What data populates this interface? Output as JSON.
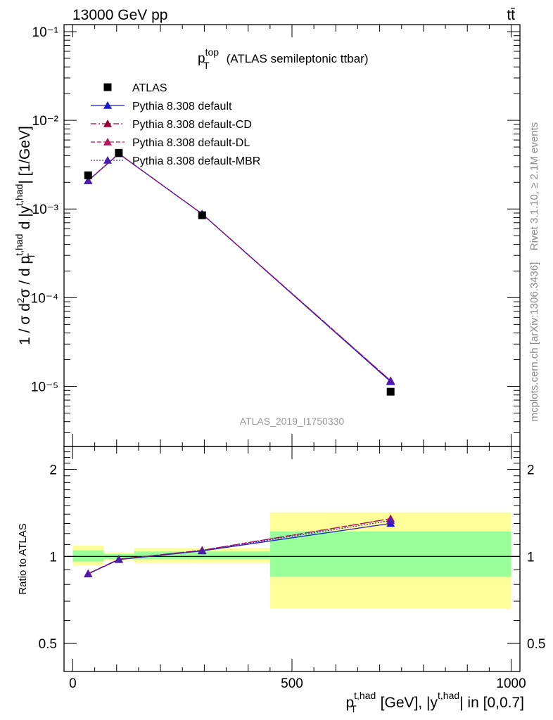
{
  "header": {
    "energy_label": "13000 GeV pp",
    "process_label": "tt̄",
    "side_rivet": "Rivet 3.1.10, ≥ 2.1M events",
    "side_mcplots": "mcplots.cern.ch [arXiv:1306.3436]"
  },
  "plot_title": {
    "main": "p",
    "sup": "top",
    "sub": "T",
    "rest": "(ATLAS semileptonic ttbar)"
  },
  "analysis_id": "ATLAS_2019_I1750330",
  "colors": {
    "data": "#000000",
    "default": "#1a1acc",
    "cd": "#990033",
    "dl": "#b3165f",
    "mbr": "#4d1ab3",
    "band_inner": "#99ff99",
    "band_outer": "#ffff99"
  },
  "chart_data": [
    {
      "type": "scatter",
      "panel": "main",
      "ylabel": "1 / σ d²σ / d p_T^{t,had} d |y^{t,had}| [1/GeV]",
      "yscale": "log",
      "ylim": [
        2.1e-06,
        0.12
      ],
      "xlim": [
        -20,
        1020
      ],
      "ytick_labels": [
        "10⁻⁵",
        "10⁻⁴",
        "10⁻³",
        "10⁻²",
        "10⁻¹"
      ],
      "legend_position": "top-left",
      "series": [
        {
          "name": "ATLAS",
          "style": "square-marker",
          "x": [
            35,
            105,
            295,
            725
          ],
          "y": [
            0.0024,
            0.0043,
            0.00085,
            8.7e-06
          ]
        },
        {
          "name": "Pythia 8.308 default",
          "style": "solid",
          "x": [
            35,
            105,
            295,
            725
          ],
          "y": [
            0.00208,
            0.0042,
            0.00088,
            1.13e-05
          ]
        },
        {
          "name": "Pythia 8.308 default-CD",
          "style": "dashdot",
          "x": [
            35,
            105,
            295,
            725
          ],
          "y": [
            0.00209,
            0.00421,
            0.00088,
            1.16e-05
          ]
        },
        {
          "name": "Pythia 8.308 default-DL",
          "style": "dashed",
          "x": [
            35,
            105,
            295,
            725
          ],
          "y": [
            0.00209,
            0.00421,
            0.00088,
            1.16e-05
          ]
        },
        {
          "name": "Pythia 8.308 default-MBR",
          "style": "dotted",
          "x": [
            35,
            105,
            295,
            725
          ],
          "y": [
            0.00209,
            0.0042,
            0.00088,
            1.15e-05
          ]
        }
      ]
    },
    {
      "type": "scatter",
      "panel": "ratio",
      "ylabel": "Ratio to ATLAS",
      "xlabel": "p_T^{t,had} [GeV], |y^{t,had}| in [0,0.7]",
      "yscale": "log",
      "ylim": [
        0.4,
        2.4
      ],
      "xlim": [
        -20,
        1020
      ],
      "yticks": [
        0.5,
        1,
        2
      ],
      "ytick_labels": [
        "0.5",
        "1",
        "2"
      ],
      "xticks": [
        0,
        500,
        1000
      ],
      "xtick_labels": [
        "0",
        "500",
        "1000"
      ],
      "reference": 1,
      "bands": [
        {
          "xlo": 0,
          "xhi": 70,
          "inner": [
            0.96,
            1.05
          ],
          "outer": [
            0.93,
            1.09
          ]
        },
        {
          "xlo": 70,
          "xhi": 140,
          "inner": [
            0.98,
            1.02
          ],
          "outer": [
            0.97,
            1.03
          ]
        },
        {
          "xlo": 140,
          "xhi": 450,
          "inner": [
            0.98,
            1.04
          ],
          "outer": [
            0.95,
            1.07
          ]
        },
        {
          "xlo": 450,
          "xhi": 1000,
          "inner": [
            0.85,
            1.22
          ],
          "outer": [
            0.66,
            1.42
          ]
        }
      ],
      "series": [
        {
          "name": "Pythia 8.308 default",
          "x": [
            35,
            105,
            295,
            725
          ],
          "y": [
            0.87,
            0.975,
            1.045,
            1.3
          ]
        },
        {
          "name": "Pythia 8.308 default-CD",
          "x": [
            35,
            105,
            295,
            725
          ],
          "y": [
            0.872,
            0.978,
            1.05,
            1.35
          ]
        },
        {
          "name": "Pythia 8.308 default-DL",
          "x": [
            35,
            105,
            295,
            725
          ],
          "y": [
            0.872,
            0.978,
            1.05,
            1.35
          ]
        },
        {
          "name": "Pythia 8.308 default-MBR",
          "x": [
            35,
            105,
            295,
            725
          ],
          "y": [
            0.871,
            0.977,
            1.048,
            1.33
          ]
        }
      ]
    }
  ]
}
